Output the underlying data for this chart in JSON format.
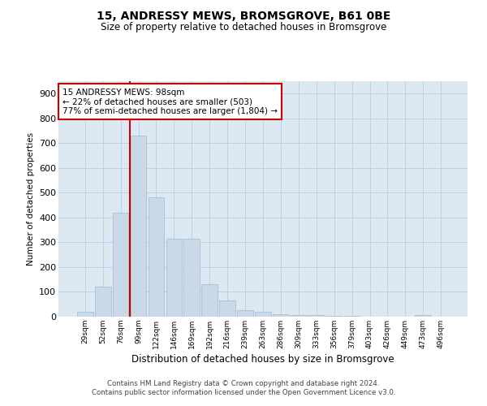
{
  "title1": "15, ANDRESSY MEWS, BROMSGROVE, B61 0BE",
  "title2": "Size of property relative to detached houses in Bromsgrove",
  "xlabel": "Distribution of detached houses by size in Bromsgrove",
  "ylabel": "Number of detached properties",
  "categories": [
    "29sqm",
    "52sqm",
    "76sqm",
    "99sqm",
    "122sqm",
    "146sqm",
    "169sqm",
    "192sqm",
    "216sqm",
    "239sqm",
    "263sqm",
    "286sqm",
    "309sqm",
    "333sqm",
    "356sqm",
    "379sqm",
    "403sqm",
    "426sqm",
    "449sqm",
    "473sqm",
    "496sqm"
  ],
  "values": [
    20,
    120,
    420,
    730,
    480,
    315,
    315,
    130,
    65,
    25,
    20,
    10,
    8,
    5,
    3,
    2,
    1,
    1,
    1,
    8,
    1
  ],
  "bar_color": "#c9d9e8",
  "bar_edge_color": "#a0b8cc",
  "vline_color": "#cc0000",
  "annotation_text": "15 ANDRESSY MEWS: 98sqm\n← 22% of detached houses are smaller (503)\n77% of semi-detached houses are larger (1,804) →",
  "annotation_box_edgecolor": "#cc0000",
  "ylim": [
    0,
    950
  ],
  "yticks": [
    0,
    100,
    200,
    300,
    400,
    500,
    600,
    700,
    800,
    900
  ],
  "footer1": "Contains HM Land Registry data © Crown copyright and database right 2024.",
  "footer2": "Contains public sector information licensed under the Open Government Licence v3.0.",
  "bg_color": "#ffffff",
  "plot_bg_color": "#dce8f2",
  "grid_color": "#b8cfe0"
}
